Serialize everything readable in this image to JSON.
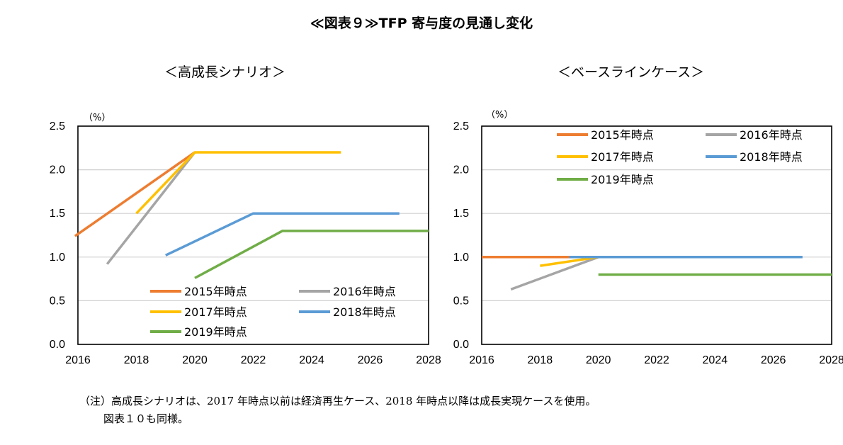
{
  "title": "≪図表９≫TFP 寄与度の見通し変化",
  "note_line1": "（注）高成長シナリオは、2017 年時点以前は経済再生ケース、2018 年時点以降は成長実現ケースを使用。",
  "note_line2": "図表１０も同様。",
  "chart_data": [
    {
      "type": "line",
      "title": "＜高成長シナリオ＞",
      "unit": "（%）",
      "xlim": [
        2016,
        2028
      ],
      "ylim": [
        0,
        2.5
      ],
      "xticks": [
        "2016",
        "2018",
        "2020",
        "2022",
        "2024",
        "2026",
        "2028"
      ],
      "yticks": [
        "0.0",
        "0.5",
        "1.0",
        "1.5",
        "2.0",
        "2.5"
      ],
      "grid": true,
      "legend_position": "bottom-right",
      "series": [
        {
          "name": "2015年時点",
          "color": "#ED7D31",
          "x": [
            2015.9,
            2020
          ],
          "y": [
            1.24,
            2.2
          ]
        },
        {
          "name": "2016年時点",
          "color": "#A5A5A5",
          "x": [
            2017,
            2020
          ],
          "y": [
            0.92,
            2.2
          ]
        },
        {
          "name": "2017年時点",
          "color": "#FFC000",
          "x": [
            2018,
            2020,
            2025
          ],
          "y": [
            1.5,
            2.2,
            2.2
          ]
        },
        {
          "name": "2018年時点",
          "color": "#5B9BD5",
          "x": [
            2019,
            2022,
            2027
          ],
          "y": [
            1.02,
            1.5,
            1.5
          ]
        },
        {
          "name": "2019年時点",
          "color": "#70AD47",
          "x": [
            2020,
            2023,
            2028
          ],
          "y": [
            0.76,
            1.3,
            1.3
          ]
        }
      ]
    },
    {
      "type": "line",
      "title": "＜ベースラインケース＞",
      "unit": "（%）",
      "xlim": [
        2016,
        2028
      ],
      "ylim": [
        0,
        2.5
      ],
      "xticks": [
        "2016",
        "2018",
        "2020",
        "2022",
        "2024",
        "2026",
        "2028"
      ],
      "yticks": [
        "0.0",
        "0.5",
        "1.0",
        "1.5",
        "2.0",
        "2.5"
      ],
      "grid": true,
      "legend_position": "top",
      "series": [
        {
          "name": "2015年時点",
          "color": "#ED7D31",
          "x": [
            2016,
            2019
          ],
          "y": [
            1.0,
            1.0
          ]
        },
        {
          "name": "2016年時点",
          "color": "#A5A5A5",
          "x": [
            2017,
            2020
          ],
          "y": [
            0.63,
            1.0
          ]
        },
        {
          "name": "2017年時点",
          "color": "#FFC000",
          "x": [
            2018,
            2020
          ],
          "y": [
            0.9,
            1.0
          ]
        },
        {
          "name": "2018年時点",
          "color": "#5B9BD5",
          "x": [
            2019,
            2027
          ],
          "y": [
            1.0,
            1.0
          ]
        },
        {
          "name": "2019年時点",
          "color": "#70AD47",
          "x": [
            2020,
            2028
          ],
          "y": [
            0.8,
            0.8
          ]
        }
      ]
    }
  ]
}
